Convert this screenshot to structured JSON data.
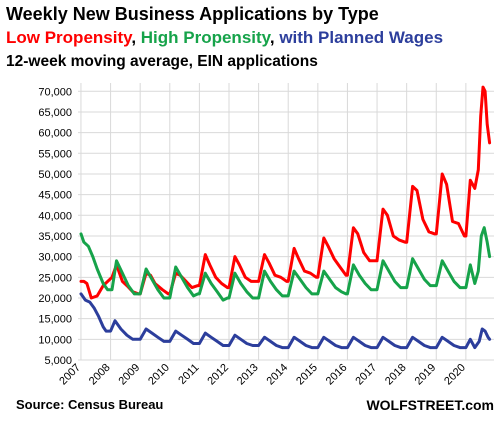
{
  "chart_data": {
    "type": "line",
    "title": "Weekly New Business Applications by Type",
    "subtitle_parts": [
      {
        "text": "Low Propensity",
        "color": "#ff0000"
      },
      {
        "text": ", ",
        "color": "#000000"
      },
      {
        "text": "High Propensity",
        "color": "#16a34a"
      },
      {
        "text": ", ",
        "color": "#000000"
      },
      {
        "text": "with Planned Wages",
        "color": "#2c3e9c"
      }
    ],
    "note": "12-week moving average, EIN applications",
    "source": "Source: Census Bureau",
    "brand": "WOLFSTREET.com",
    "xlabel": "",
    "ylabel": "",
    "xlim": [
      2006.9,
      2020.95
    ],
    "ylim": [
      5000,
      72000
    ],
    "grid": true,
    "x_ticks": [
      "2007",
      "2008",
      "2009",
      "2010",
      "2011",
      "2012",
      "2013",
      "2014",
      "2015",
      "2016",
      "2017",
      "2018",
      "2019",
      "2020"
    ],
    "y_ticks": [
      "5,000",
      "10,000",
      "15,000",
      "20,000",
      "25,000",
      "30,000",
      "35,000",
      "40,000",
      "45,000",
      "50,000",
      "55,000",
      "60,000",
      "65,000",
      "70,000"
    ],
    "series": [
      {
        "name": "Low Propensity",
        "color": "#ff0000",
        "x": [
          2007.0,
          2007.1,
          2007.2,
          2007.35,
          2007.55,
          2007.75,
          2008.05,
          2008.2,
          2008.4,
          2008.55,
          2008.75,
          2008.95,
          2009.0,
          2009.2,
          2009.35,
          2009.5,
          2009.75,
          2009.95,
          2010.0,
          2010.2,
          2010.35,
          2010.55,
          2010.75,
          2010.95,
          2011.0,
          2011.2,
          2011.35,
          2011.55,
          2011.75,
          2011.95,
          2012.0,
          2012.2,
          2012.35,
          2012.55,
          2012.75,
          2012.95,
          2013.0,
          2013.2,
          2013.35,
          2013.55,
          2013.75,
          2013.95,
          2014.0,
          2014.2,
          2014.35,
          2014.55,
          2014.75,
          2014.95,
          2015.0,
          2015.2,
          2015.35,
          2015.55,
          2015.75,
          2015.95,
          2016.0,
          2016.2,
          2016.35,
          2016.55,
          2016.75,
          2016.95,
          2017.0,
          2017.2,
          2017.35,
          2017.55,
          2017.75,
          2017.95,
          2018.0,
          2018.2,
          2018.35,
          2018.55,
          2018.75,
          2018.95,
          2019.0,
          2019.2,
          2019.35,
          2019.55,
          2019.75,
          2019.95,
          2020.0,
          2020.15,
          2020.3,
          2020.42,
          2020.5,
          2020.58,
          2020.65,
          2020.72,
          2020.8
        ],
        "values": [
          24000,
          24000,
          23500,
          20000,
          20500,
          23000,
          25000,
          28000,
          24000,
          23000,
          21500,
          21000,
          21000,
          26000,
          25500,
          23500,
          22000,
          21000,
          21000,
          26000,
          25500,
          24000,
          22500,
          23000,
          23000,
          30500,
          28000,
          25000,
          23500,
          22500,
          22500,
          30000,
          28000,
          25000,
          24000,
          24000,
          24000,
          30500,
          28500,
          25500,
          25000,
          24000,
          24000,
          32000,
          29500,
          26500,
          26000,
          25000,
          25000,
          34500,
          32500,
          29500,
          27500,
          25500,
          25500,
          37000,
          35500,
          31000,
          29000,
          29000,
          29000,
          41500,
          40000,
          35000,
          34000,
          33500,
          33500,
          47000,
          46000,
          39000,
          36000,
          35500,
          35500,
          50000,
          47500,
          38500,
          38000,
          35000,
          35000,
          48500,
          46500,
          51000,
          64000,
          71000,
          70000,
          62000,
          57500
        ]
      },
      {
        "name": "High Propensity",
        "color": "#16a34a",
        "x": [
          2007.0,
          2007.1,
          2007.25,
          2007.4,
          2007.55,
          2007.75,
          2007.9,
          2008.05,
          2008.2,
          2008.4,
          2008.6,
          2008.8,
          2008.95,
          2009.0,
          2009.2,
          2009.4,
          2009.6,
          2009.8,
          2009.95,
          2010.0,
          2010.2,
          2010.4,
          2010.6,
          2010.8,
          2010.95,
          2011.0,
          2011.2,
          2011.4,
          2011.6,
          2011.8,
          2011.95,
          2012.0,
          2012.2,
          2012.4,
          2012.6,
          2012.8,
          2012.95,
          2013.0,
          2013.2,
          2013.4,
          2013.6,
          2013.8,
          2013.95,
          2014.0,
          2014.2,
          2014.4,
          2014.6,
          2014.8,
          2014.95,
          2015.0,
          2015.2,
          2015.4,
          2015.6,
          2015.8,
          2015.95,
          2016.0,
          2016.2,
          2016.4,
          2016.6,
          2016.8,
          2016.95,
          2017.0,
          2017.2,
          2017.4,
          2017.6,
          2017.8,
          2017.95,
          2018.0,
          2018.2,
          2018.4,
          2018.6,
          2018.8,
          2018.95,
          2019.0,
          2019.2,
          2019.4,
          2019.6,
          2019.8,
          2019.95,
          2020.0,
          2020.15,
          2020.3,
          2020.42,
          2020.52,
          2020.62,
          2020.72,
          2020.8
        ],
        "values": [
          35500,
          33500,
          32500,
          30000,
          27000,
          23500,
          22000,
          22000,
          29000,
          26000,
          23000,
          21000,
          21000,
          21000,
          27000,
          24500,
          22000,
          20000,
          20000,
          20000,
          27500,
          25000,
          22500,
          20500,
          21000,
          21000,
          26000,
          23500,
          21500,
          19500,
          20000,
          20000,
          26000,
          23500,
          21500,
          20000,
          20000,
          20000,
          26500,
          24000,
          22000,
          20500,
          20500,
          20500,
          26500,
          24500,
          22500,
          21000,
          21000,
          21000,
          26500,
          24500,
          22500,
          21500,
          21000,
          21000,
          28000,
          25500,
          23500,
          22000,
          22000,
          22000,
          29000,
          26500,
          24000,
          22500,
          22500,
          22500,
          29500,
          27000,
          24500,
          23000,
          23000,
          23000,
          29000,
          26500,
          24000,
          22500,
          22500,
          22500,
          28000,
          23500,
          26500,
          35000,
          37000,
          33500,
          30000
        ]
      },
      {
        "name": "with Planned Wages",
        "color": "#2c3e9c",
        "x": [
          2007.0,
          2007.15,
          2007.3,
          2007.45,
          2007.6,
          2007.75,
          2007.85,
          2008.0,
          2008.15,
          2008.35,
          2008.55,
          2008.75,
          2008.95,
          2009.0,
          2009.2,
          2009.4,
          2009.6,
          2009.8,
          2009.95,
          2010.0,
          2010.2,
          2010.4,
          2010.6,
          2010.8,
          2010.95,
          2011.0,
          2011.2,
          2011.4,
          2011.6,
          2011.8,
          2011.95,
          2012.0,
          2012.2,
          2012.4,
          2012.6,
          2012.8,
          2012.95,
          2013.0,
          2013.2,
          2013.4,
          2013.6,
          2013.8,
          2013.95,
          2014.0,
          2014.2,
          2014.4,
          2014.6,
          2014.8,
          2014.95,
          2015.0,
          2015.2,
          2015.4,
          2015.6,
          2015.8,
          2015.95,
          2016.0,
          2016.2,
          2016.4,
          2016.6,
          2016.8,
          2016.95,
          2017.0,
          2017.2,
          2017.4,
          2017.6,
          2017.8,
          2017.95,
          2018.0,
          2018.2,
          2018.4,
          2018.6,
          2018.8,
          2018.95,
          2019.0,
          2019.2,
          2019.4,
          2019.6,
          2019.8,
          2019.95,
          2020.0,
          2020.15,
          2020.3,
          2020.45,
          2020.55,
          2020.65,
          2020.75,
          2020.8
        ],
        "values": [
          21000,
          19500,
          19000,
          17500,
          15500,
          13000,
          12000,
          12000,
          14500,
          12500,
          11000,
          10000,
          10000,
          10000,
          12500,
          11500,
          10500,
          9500,
          9500,
          9500,
          12000,
          11000,
          10000,
          9000,
          9000,
          9000,
          11500,
          10500,
          9500,
          8500,
          8500,
          8500,
          11000,
          10000,
          9000,
          8500,
          8500,
          8500,
          10500,
          9500,
          8500,
          8000,
          8000,
          8000,
          10500,
          9500,
          8500,
          8000,
          8000,
          8000,
          10500,
          9500,
          8500,
          8000,
          8000,
          8000,
          10500,
          9500,
          8500,
          8000,
          8000,
          8000,
          10500,
          9500,
          8500,
          8000,
          8000,
          8000,
          10500,
          9500,
          8500,
          8000,
          8000,
          8000,
          10500,
          9500,
          8500,
          8000,
          8000,
          8000,
          10000,
          8000,
          9500,
          12500,
          12000,
          10500,
          10000
        ]
      }
    ]
  }
}
